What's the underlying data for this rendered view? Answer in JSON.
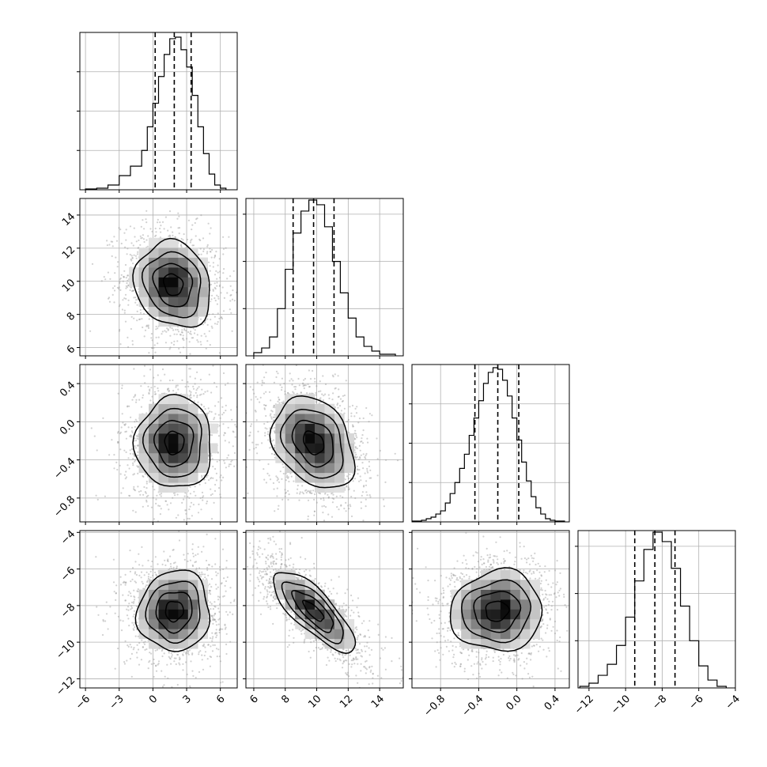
{
  "chart_data": {
    "type": "corner",
    "grid": true,
    "panels": [
      {
        "kind": "hist",
        "row": 0,
        "col": 0,
        "param_index": 0,
        "xlim": [
          -6.5,
          7.5
        ],
        "ylim": [
          0,
          1
        ],
        "bin_edges": [
          -6.0,
          -5.0,
          -4.0,
          -3.0,
          -2.0,
          -1.0,
          -0.5,
          0.0,
          0.5,
          1.0,
          1.5,
          2.0,
          2.5,
          3.0,
          3.5,
          4.0,
          4.5,
          5.0,
          5.5,
          6.0,
          6.5
        ],
        "counts": [
          0.005,
          0.01,
          0.03,
          0.09,
          0.15,
          0.25,
          0.4,
          0.55,
          0.72,
          0.86,
          0.96,
          0.97,
          0.89,
          0.78,
          0.6,
          0.4,
          0.23,
          0.1,
          0.03,
          0.01
        ],
        "quantiles": [
          0.2,
          1.9,
          3.4
        ],
        "yticks": [
          0.25,
          0.5,
          0.75
        ]
      },
      {
        "kind": "hist",
        "row": 1,
        "col": 1,
        "param_index": 1,
        "xlim": [
          5.5,
          15.5
        ],
        "ylim": [
          0,
          1
        ],
        "bin_edges": [
          6.0,
          6.5,
          7.0,
          7.5,
          8.0,
          8.5,
          9.0,
          9.5,
          10.0,
          10.5,
          11.0,
          11.5,
          12.0,
          12.5,
          13.0,
          13.5,
          14.0,
          14.5,
          15.0
        ],
        "counts": [
          0.02,
          0.05,
          0.12,
          0.3,
          0.55,
          0.78,
          0.92,
          0.99,
          0.96,
          0.82,
          0.6,
          0.4,
          0.24,
          0.12,
          0.06,
          0.03,
          0.01,
          0.01
        ],
        "quantiles": [
          8.5,
          9.8,
          11.1
        ],
        "yticks": [
          0.3,
          0.6,
          0.9
        ]
      },
      {
        "kind": "hist",
        "row": 2,
        "col": 2,
        "param_index": 2,
        "xlim": [
          -1.1,
          0.55
        ],
        "ylim": [
          0,
          1
        ],
        "bin_edges": [
          -1.1,
          -1.0,
          -0.95,
          -0.9,
          -0.85,
          -0.8,
          -0.75,
          -0.7,
          -0.65,
          -0.6,
          -0.55,
          -0.5,
          -0.45,
          -0.4,
          -0.35,
          -0.3,
          -0.25,
          -0.2,
          -0.15,
          -0.1,
          -0.05,
          0.0,
          0.05,
          0.1,
          0.15,
          0.2,
          0.25,
          0.3,
          0.35,
          0.4,
          0.5
        ],
        "counts": [
          0.005,
          0.01,
          0.02,
          0.03,
          0.05,
          0.07,
          0.12,
          0.18,
          0.25,
          0.34,
          0.43,
          0.55,
          0.66,
          0.77,
          0.88,
          0.95,
          0.98,
          0.97,
          0.9,
          0.8,
          0.66,
          0.52,
          0.38,
          0.26,
          0.16,
          0.09,
          0.05,
          0.02,
          0.01,
          0.005
        ],
        "quantiles": [
          -0.44,
          -0.2,
          0.02
        ],
        "yticks": [
          0.25,
          0.5,
          0.75
        ]
      },
      {
        "kind": "hist",
        "row": 3,
        "col": 3,
        "param_index": 3,
        "xlim": [
          -12.6,
          -4.0
        ],
        "ylim": [
          0,
          1
        ],
        "bin_edges": [
          -12.5,
          -12.0,
          -11.5,
          -11.0,
          -10.5,
          -10.0,
          -9.5,
          -9.0,
          -8.5,
          -8.0,
          -7.5,
          -7.0,
          -6.5,
          -6.0,
          -5.5,
          -5.0,
          -4.5
        ],
        "counts": [
          0.01,
          0.03,
          0.08,
          0.15,
          0.27,
          0.45,
          0.68,
          0.88,
          0.99,
          0.93,
          0.76,
          0.52,
          0.3,
          0.14,
          0.05,
          0.01
        ],
        "quantiles": [
          -9.5,
          -8.4,
          -7.3
        ],
        "yticks": [
          0.3,
          0.6,
          0.9
        ]
      },
      {
        "kind": "scatter2d",
        "row": 1,
        "col": 0,
        "xlim": [
          -6.5,
          7.5
        ],
        "ylim": [
          5.5,
          15.0
        ],
        "center": [
          1.8,
          9.8
        ],
        "sigma": [
          1.7,
          1.3
        ],
        "rho": -0.15
      },
      {
        "kind": "scatter2d",
        "row": 2,
        "col": 0,
        "xlim": [
          -6.5,
          7.5
        ],
        "ylim": [
          -1.05,
          0.6
        ],
        "center": [
          1.9,
          -0.22
        ],
        "sigma": [
          1.7,
          0.24
        ],
        "rho": 0.0
      },
      {
        "kind": "scatter2d",
        "row": 2,
        "col": 1,
        "xlim": [
          5.5,
          15.5
        ],
        "ylim": [
          -1.05,
          0.6
        ],
        "center": [
          9.8,
          -0.22
        ],
        "sigma": [
          1.3,
          0.24
        ],
        "rho": -0.3
      },
      {
        "kind": "scatter2d",
        "row": 3,
        "col": 0,
        "xlim": [
          -6.5,
          7.5
        ],
        "ylim": [
          -12.5,
          -3.9
        ],
        "center": [
          1.9,
          -8.3
        ],
        "sigma": [
          1.6,
          1.1
        ],
        "rho": 0.05
      },
      {
        "kind": "scatter2d",
        "row": 3,
        "col": 1,
        "xlim": [
          5.5,
          15.5
        ],
        "ylim": [
          -12.5,
          -3.9
        ],
        "center": [
          9.8,
          -8.3
        ],
        "sigma": [
          1.3,
          1.1
        ],
        "rho": -0.78
      },
      {
        "kind": "scatter2d",
        "row": 3,
        "col": 2,
        "xlim": [
          -1.1,
          0.55
        ],
        "ylim": [
          -12.5,
          -3.9
        ],
        "center": [
          -0.21,
          -8.3
        ],
        "sigma": [
          0.24,
          1.1
        ],
        "rho": 0.05
      }
    ],
    "x_tick_labels": [
      [
        "−6",
        "−3",
        "0",
        "3",
        "6"
      ],
      [
        "6",
        "8",
        "10",
        "12",
        "14"
      ],
      [
        "−0.8",
        "−0.4",
        "0.0",
        "0.4"
      ],
      [
        "−12",
        "−10",
        "−8",
        "−6",
        "−4"
      ]
    ],
    "x_tick_values": [
      [
        -6,
        -3,
        0,
        3,
        6
      ],
      [
        6,
        8,
        10,
        12,
        14
      ],
      [
        -0.8,
        -0.4,
        0.0,
        0.4
      ],
      [
        -12,
        -10,
        -8,
        -6,
        -4
      ]
    ],
    "y_tick_labels": [
      [],
      [
        "6",
        "8",
        "10",
        "12",
        "14"
      ],
      [
        "−0.8",
        "−0.4",
        "0.0",
        "0.4"
      ],
      [
        "−12",
        "−10",
        "−8",
        "−6",
        "−4"
      ]
    ],
    "y_tick_values": [
      [],
      [
        6,
        8,
        10,
        12,
        14
      ],
      [
        -0.8,
        -0.4,
        0.0,
        0.4
      ],
      [
        -12,
        -10,
        -8,
        -6,
        -4
      ]
    ]
  }
}
